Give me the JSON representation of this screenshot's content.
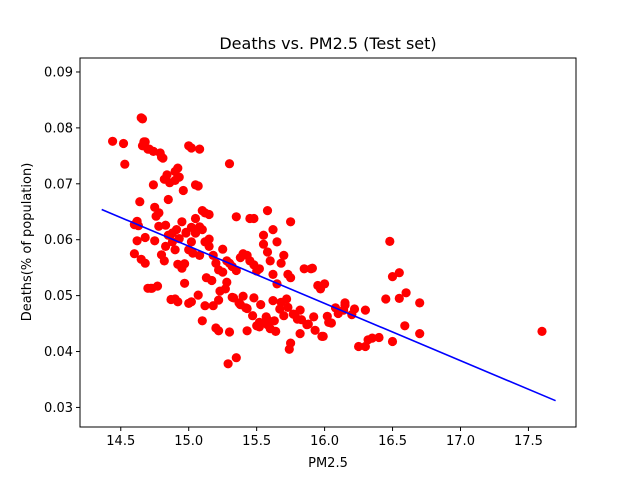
{
  "chart_data": {
    "type": "scatter",
    "title": "Deaths vs. PM2.5 (Test set)",
    "xlabel": "PM2.5",
    "ylabel": "Deaths(% of population)",
    "xlim": [
      14.2,
      17.85
    ],
    "ylim": [
      0.0265,
      0.0925
    ],
    "xticks": [
      14.5,
      15.0,
      15.5,
      16.0,
      16.5,
      17.0,
      17.5
    ],
    "xtick_labels": [
      "14.5",
      "15.0",
      "15.5",
      "16.0",
      "16.5",
      "17.0",
      "17.5"
    ],
    "yticks": [
      0.03,
      0.04,
      0.05,
      0.06,
      0.07,
      0.08,
      0.09
    ],
    "ytick_labels": [
      "0.03",
      "0.04",
      "0.05",
      "0.06",
      "0.07",
      "0.08",
      "0.09"
    ],
    "grid": false,
    "legend": "none",
    "colors": {
      "points": "#ff0000",
      "line": "#0000ff"
    },
    "series": [
      {
        "kind": "points",
        "x": [
          14.44,
          14.52,
          14.53,
          14.6,
          14.62,
          14.64,
          14.65,
          14.66,
          14.66,
          14.67,
          14.68,
          14.7,
          14.71,
          14.74,
          14.74,
          14.76,
          14.78,
          14.79,
          14.8,
          14.81,
          14.82,
          14.84,
          14.86,
          14.9,
          14.9,
          14.92,
          14.93,
          14.96,
          15.0,
          15.02,
          15.05,
          15.07,
          15.08,
          15.3,
          14.6,
          14.62,
          14.65,
          14.68,
          14.7,
          14.73,
          14.75,
          14.78,
          14.8,
          14.83,
          14.85,
          14.88,
          14.9,
          14.92,
          14.95,
          14.97,
          15.0,
          15.02,
          15.05,
          15.08,
          15.1,
          15.12,
          15.15,
          15.18,
          15.2,
          15.22,
          15.25,
          15.28,
          15.3,
          15.32,
          15.35,
          15.38,
          15.4,
          15.43,
          15.45,
          15.48,
          15.5,
          15.52,
          15.55,
          15.58,
          15.6,
          15.62,
          15.65,
          15.68,
          15.7,
          15.73,
          15.75,
          14.63,
          14.68,
          14.72,
          14.77,
          14.82,
          14.87,
          14.92,
          14.97,
          15.02,
          15.07,
          15.12,
          15.17,
          15.22,
          15.27,
          15.32,
          15.37,
          15.42,
          15.47,
          15.52,
          15.57,
          15.62,
          15.67,
          15.72,
          15.77,
          15.82,
          15.87,
          15.92,
          15.97,
          16.02,
          16.08,
          16.15,
          16.2,
          16.25,
          16.3,
          14.78,
          14.83,
          14.88,
          14.93,
          14.98,
          15.03,
          15.08,
          15.13,
          15.18,
          15.23,
          15.28,
          15.33,
          15.38,
          15.43,
          15.48,
          15.53,
          15.58,
          15.63,
          15.68,
          15.73,
          15.78,
          15.83,
          15.88,
          15.93,
          15.98,
          16.03,
          16.1,
          16.15,
          16.22,
          16.32,
          16.4,
          16.45,
          16.5,
          16.55,
          16.6,
          16.7,
          14.75,
          14.85,
          14.95,
          15.05,
          15.15,
          15.25,
          15.35,
          15.45,
          15.55,
          15.65,
          15.75,
          15.85,
          15.95,
          14.9,
          15.0,
          15.1,
          15.2,
          15.3,
          15.4,
          15.5,
          15.6,
          15.7,
          15.8,
          15.9,
          16.0,
          15.1,
          15.12,
          15.22,
          15.29,
          15.35,
          15.43,
          15.52,
          15.58,
          15.64,
          15.74,
          15.75,
          15.82,
          15.91,
          15.99,
          16.05,
          16.14,
          16.3,
          16.35,
          16.48,
          16.5,
          16.55,
          16.59,
          16.7,
          17.6,
          15.58,
          15.62,
          15.48,
          15.15,
          15.05,
          15.02,
          14.98,
          14.91
        ],
        "y": [
          0.0776,
          0.0772,
          0.0735,
          0.0627,
          0.0633,
          0.0668,
          0.0818,
          0.0816,
          0.0768,
          0.0775,
          0.0775,
          0.0762,
          0.0762,
          0.0758,
          0.0698,
          0.0642,
          0.0648,
          0.0755,
          0.0748,
          0.0746,
          0.0708,
          0.0716,
          0.0702,
          0.0706,
          0.0722,
          0.0728,
          0.0712,
          0.0688,
          0.0768,
          0.0764,
          0.0698,
          0.0696,
          0.0762,
          0.0736,
          0.0575,
          0.0598,
          0.0565,
          0.0604,
          0.0513,
          0.0513,
          0.0598,
          0.0624,
          0.0573,
          0.0588,
          0.0608,
          0.0596,
          0.0582,
          0.0556,
          0.0549,
          0.0557,
          0.0582,
          0.0596,
          0.0612,
          0.0623,
          0.0618,
          0.0596,
          0.0588,
          0.0572,
          0.0558,
          0.0546,
          0.0542,
          0.0562,
          0.0558,
          0.0552,
          0.0545,
          0.0568,
          0.0575,
          0.0572,
          0.0562,
          0.0555,
          0.0544,
          0.0548,
          0.0592,
          0.0578,
          0.0562,
          0.0538,
          0.0521,
          0.0558,
          0.0572,
          0.0538,
          0.0532,
          0.0625,
          0.0558,
          0.0513,
          0.0517,
          0.0562,
          0.0493,
          0.0489,
          0.0522,
          0.0489,
          0.0501,
          0.0482,
          0.0527,
          0.0492,
          0.0512,
          0.0497,
          0.0487,
          0.0478,
          0.0464,
          0.0452,
          0.0462,
          0.0491,
          0.0476,
          0.0494,
          0.0467,
          0.0474,
          0.0448,
          0.0462,
          0.0512,
          0.0463,
          0.0478,
          0.0483,
          0.0466,
          0.0409,
          0.0409,
          0.0648,
          0.0626,
          0.0612,
          0.0602,
          0.0613,
          0.0576,
          0.0572,
          0.0532,
          0.0482,
          0.0508,
          0.0524,
          0.0496,
          0.0484,
          0.0477,
          0.0496,
          0.0484,
          0.0457,
          0.0455,
          0.0488,
          0.0479,
          0.0466,
          0.0457,
          0.0449,
          0.0438,
          0.0427,
          0.0452,
          0.0468,
          0.0487,
          0.0476,
          0.0421,
          0.0425,
          0.0494,
          0.0418,
          0.0495,
          0.0505,
          0.0487,
          0.0658,
          0.0672,
          0.0632,
          0.0612,
          0.0601,
          0.0583,
          0.0641,
          0.0638,
          0.0608,
          0.0596,
          0.0632,
          0.0548,
          0.0518,
          0.0494,
          0.0486,
          0.0455,
          0.0442,
          0.0435,
          0.0499,
          0.0446,
          0.0441,
          0.0464,
          0.0458,
          0.0548,
          0.0521,
          0.0652,
          0.0648,
          0.0437,
          0.0378,
          0.0389,
          0.0437,
          0.0444,
          0.0448,
          0.0436,
          0.0404,
          0.0415,
          0.0432,
          0.0549,
          0.0427,
          0.0451,
          0.0474,
          0.0474,
          0.0424,
          0.0597,
          0.0534,
          0.0541,
          0.0446,
          0.0432,
          0.0436,
          0.0652,
          0.0618,
          0.0638,
          0.0645,
          0.0638,
          0.0622,
          0.0612,
          0.0618
        ]
      },
      {
        "kind": "regression-line",
        "x": [
          14.36,
          17.7
        ],
        "y": [
          0.0654,
          0.0312
        ]
      }
    ]
  }
}
